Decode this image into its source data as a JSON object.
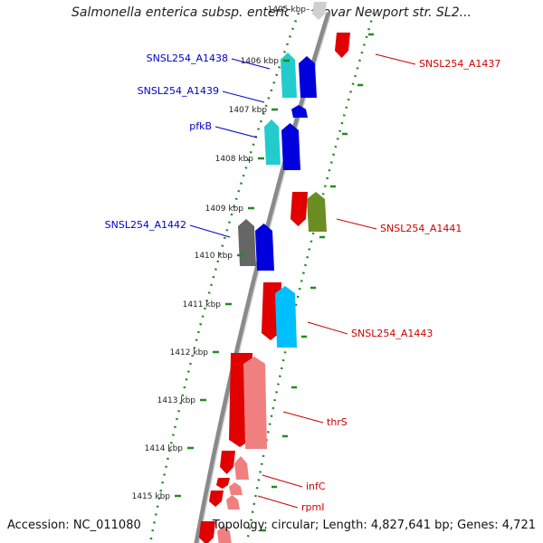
{
  "title": "Salmonella enterica subsp. enterica serovar Newport str. SL2...",
  "accession": "Accession: NC_011080",
  "topology": "Topology: circular; Length: 4,827,641 bp; Genes: 4,721",
  "axis": {
    "unit": "kbp",
    "ticks": [
      "1405 kbp",
      "1406 kbp",
      "1407 kbp",
      "1408 kbp",
      "1409 kbp",
      "1410 kbp",
      "1411 kbp",
      "1412 kbp",
      "1413 kbp",
      "1414 kbp",
      "1415 kbp"
    ]
  },
  "colors": {
    "backbone": "#8a8a8a",
    "dots": "#228b22",
    "forward_label": "#0000cc",
    "reverse_label": "#cc0000"
  },
  "gene_labels_left": [
    "SNSL254_A1438",
    "SNSL254_A1439",
    "pfkB",
    "SNSL254_A1442"
  ],
  "gene_labels_right": [
    "SNSL254_A1437",
    "SNSL254_A1441",
    "SNSL254_A1443",
    "thrS",
    "infC",
    "rpmI"
  ]
}
